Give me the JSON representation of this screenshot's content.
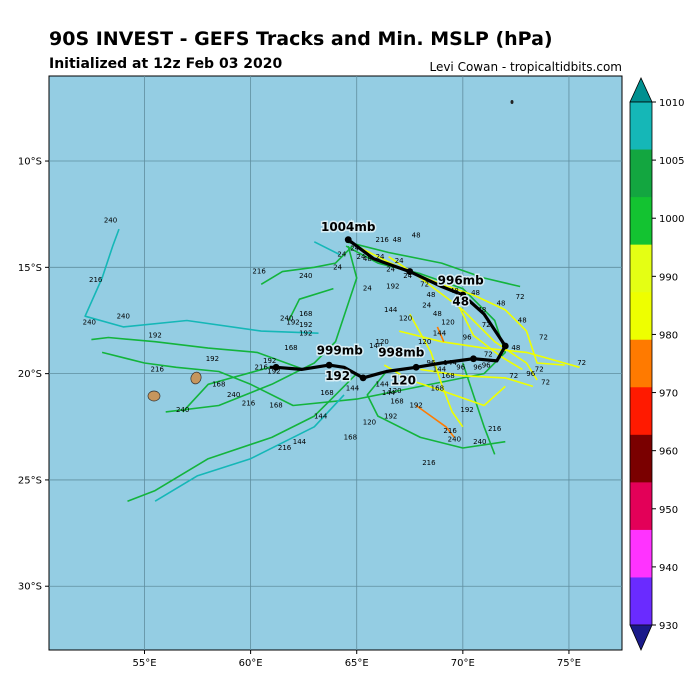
{
  "header": {
    "title": "90S INVEST - GEFS Tracks and Min. MSLP (hPa)",
    "subtitle": "Initialized at 12z Feb 03 2020",
    "credit": "Levi Cowan - tropicaltidbits.com"
  },
  "map": {
    "lon_range": [
      50.5,
      77.5
    ],
    "lat_range": [
      -33,
      -6
    ],
    "lat_ticks": [
      "10°S",
      "15°S",
      "20°S",
      "25°S",
      "30°S"
    ],
    "lon_ticks": [
      "55°E",
      "60°E",
      "65°E",
      "70°E",
      "75°E"
    ],
    "ocean_color": "#94cde3",
    "grid_color": "#5f8e9f"
  },
  "colorbar": {
    "ticks": [
      "1010",
      "1005",
      "1000",
      "990",
      "980",
      "970",
      "960",
      "950",
      "940",
      "930"
    ],
    "colors": [
      "#009090",
      "#15b7b7",
      "#13a640",
      "#13c331",
      "#e4ff14",
      "#eeff00",
      "#ff7a00",
      "#ff1a00",
      "#7a0000",
      "#e30058",
      "#ff33ff",
      "#6a2bff",
      "#1a1a8a"
    ]
  },
  "mean_labels": [
    {
      "text": "1004mb",
      "lon": 64.6,
      "lat": -13.3
    },
    {
      "text": "996mb",
      "lon": 69.9,
      "lat": -15.8
    },
    {
      "text": "48",
      "lon": 69.9,
      "lat": -16.8
    },
    {
      "text": "999mb",
      "lon": 64.2,
      "lat": -19.1
    },
    {
      "text": "192",
      "lon": 64.1,
      "lat": -20.3
    },
    {
      "text": "998mb",
      "lon": 67.1,
      "lat": -19.2
    },
    {
      "text": "120",
      "lon": 67.2,
      "lat": -20.5
    }
  ],
  "mean_track": [
    [
      64.6,
      -13.7
    ],
    [
      65.8,
      -14.6
    ],
    [
      67.5,
      -15.2
    ],
    [
      69,
      -15.9
    ],
    [
      70,
      -16.3
    ],
    [
      71,
      -17.2
    ],
    [
      72,
      -18.7
    ],
    [
      71.6,
      -19.4
    ],
    [
      70.5,
      -19.3
    ],
    [
      69,
      -19.5
    ],
    [
      67.8,
      -19.7
    ],
    [
      66.4,
      -19.9
    ],
    [
      65.3,
      -20.2
    ],
    [
      64.4,
      -19.7
    ],
    [
      63.7,
      -19.6
    ],
    [
      62.4,
      -19.8
    ],
    [
      61.2,
      -19.7
    ],
    [
      60.9,
      -19.7
    ]
  ],
  "ensemble_tracks": [
    {
      "color": "#13b43c",
      "points": [
        [
          64.5,
          -14
        ],
        [
          66,
          -14.8
        ],
        [
          68,
          -15.3
        ],
        [
          70,
          -16
        ],
        [
          71.5,
          -17.5
        ],
        [
          72,
          -19
        ],
        [
          71,
          -20
        ],
        [
          69,
          -20.4
        ],
        [
          67,
          -20.8
        ],
        [
          65,
          -21.2
        ],
        [
          62,
          -21.5
        ],
        [
          60,
          -20.5
        ],
        [
          58.5,
          -19.9
        ],
        [
          56.5,
          -19.7
        ],
        [
          55,
          -19.5
        ],
        [
          53,
          -19
        ]
      ]
    },
    {
      "color": "#13b43c",
      "points": [
        [
          64.5,
          -13.8
        ],
        [
          66.5,
          -14.3
        ],
        [
          69,
          -14.8
        ],
        [
          71,
          -15.5
        ],
        [
          72.7,
          -15.9
        ]
      ]
    },
    {
      "color": "#13b43c",
      "points": [
        [
          64.6,
          -14
        ],
        [
          65,
          -15.5
        ],
        [
          64.5,
          -17
        ],
        [
          64,
          -18.5
        ],
        [
          63,
          -19.5
        ],
        [
          61,
          -20.5
        ],
        [
          58.5,
          -21.5
        ],
        [
          56,
          -21.8
        ]
      ]
    },
    {
      "color": "#13b43c",
      "points": [
        [
          65,
          -20
        ],
        [
          64,
          -21
        ],
        [
          63,
          -22
        ],
        [
          61,
          -23
        ],
        [
          58,
          -24
        ],
        [
          55.5,
          -25.5
        ],
        [
          54.2,
          -26
        ]
      ]
    },
    {
      "color": "#13b43c",
      "points": [
        [
          64.8,
          -14
        ],
        [
          64,
          -14.8
        ],
        [
          63,
          -15
        ],
        [
          61.5,
          -15.2
        ],
        [
          60.5,
          -15.8
        ]
      ]
    },
    {
      "color": "#13b43c",
      "points": [
        [
          66.4,
          -19.9
        ],
        [
          65.5,
          -21
        ],
        [
          66,
          -22
        ],
        [
          68,
          -23
        ],
        [
          70,
          -23.5
        ],
        [
          72,
          -23.2
        ]
      ]
    },
    {
      "color": "#13b43c",
      "points": [
        [
          70,
          -19.5
        ],
        [
          70.5,
          -21
        ],
        [
          71,
          -22.5
        ],
        [
          71.5,
          -23.8
        ]
      ]
    },
    {
      "color": "#13b43c",
      "points": [
        [
          62.5,
          -19.8
        ],
        [
          60.3,
          -19
        ],
        [
          58,
          -18.8
        ],
        [
          55.5,
          -18.5
        ],
        [
          53.3,
          -18.3
        ],
        [
          52.5,
          -18.4
        ]
      ]
    },
    {
      "color": "#13b43c",
      "points": [
        [
          60.9,
          -19.7
        ],
        [
          58,
          -20.5
        ],
        [
          56.8,
          -21.8
        ]
      ]
    },
    {
      "color": "#13b43c",
      "points": [
        [
          63.9,
          -16
        ],
        [
          62.3,
          -16.5
        ],
        [
          61.8,
          -17.5
        ]
      ]
    },
    {
      "color": "#15b7b7",
      "points": [
        [
          63.2,
          -18.1
        ],
        [
          60.5,
          -18
        ],
        [
          57,
          -17.5
        ],
        [
          54,
          -17.8
        ],
        [
          52.2,
          -17.3
        ],
        [
          53,
          -15.5
        ],
        [
          53.5,
          -14
        ],
        [
          53.8,
          -13.2
        ]
      ]
    },
    {
      "color": "#15b7b7",
      "points": [
        [
          64.2,
          -14.4
        ],
        [
          63,
          -13.8
        ]
      ]
    },
    {
      "color": "#15b7b7",
      "points": [
        [
          64.4,
          -21
        ],
        [
          63,
          -22.5
        ],
        [
          60,
          -24
        ],
        [
          57.5,
          -24.8
        ],
        [
          55.5,
          -26
        ]
      ]
    },
    {
      "color": "#eeff00",
      "points": [
        [
          65,
          -14
        ],
        [
          67,
          -15
        ],
        [
          69,
          -15.8
        ],
        [
          70.5,
          -16.3
        ],
        [
          72,
          -17
        ],
        [
          73,
          -18
        ],
        [
          73.5,
          -19.5
        ],
        [
          74.8,
          -19.6
        ]
      ]
    },
    {
      "color": "#eeff00",
      "points": [
        [
          66.5,
          -14.5
        ],
        [
          68,
          -15.5
        ],
        [
          70,
          -17
        ],
        [
          71.5,
          -18.5
        ],
        [
          73,
          -19.5
        ],
        [
          73.5,
          -20.3
        ]
      ]
    },
    {
      "color": "#eeff00",
      "points": [
        [
          67,
          -18
        ],
        [
          69,
          -18.5
        ],
        [
          71,
          -18.8
        ],
        [
          73,
          -19
        ],
        [
          75.5,
          -19.7
        ]
      ]
    },
    {
      "color": "#eeff00",
      "points": [
        [
          67.5,
          -17.2
        ],
        [
          68.5,
          -19
        ],
        [
          69,
          -20.5
        ],
        [
          69.5,
          -21.8
        ],
        [
          70,
          -22.5
        ]
      ]
    },
    {
      "color": "#eeff00",
      "points": [
        [
          66.3,
          -19.6
        ],
        [
          67.5,
          -20.3
        ],
        [
          69,
          -20.8
        ],
        [
          71,
          -21.5
        ],
        [
          72,
          -20.6
        ]
      ]
    },
    {
      "color": "#eeff00",
      "points": [
        [
          69.8,
          -16.8
        ],
        [
          70.5,
          -18.2
        ],
        [
          71.8,
          -19.2
        ],
        [
          72.8,
          -19.8
        ]
      ]
    },
    {
      "color": "#eeff00",
      "points": [
        [
          68,
          -19.8
        ],
        [
          70,
          -20.1
        ],
        [
          72,
          -20.2
        ],
        [
          73.3,
          -20.6
        ]
      ]
    },
    {
      "color": "#ff7a00",
      "points": [
        [
          67.8,
          -21.5
        ],
        [
          68.5,
          -22
        ],
        [
          69.2,
          -22.5
        ],
        [
          69.6,
          -23
        ]
      ]
    },
    {
      "color": "#ff7a00",
      "points": [
        [
          68.8,
          -17.8
        ],
        [
          69.1,
          -18.5
        ]
      ]
    }
  ],
  "hour_labels": [
    {
      "text": "240",
      "lon": 53.4,
      "lat": -12.9
    },
    {
      "text": "216",
      "lon": 52.7,
      "lat": -15.7
    },
    {
      "text": "240",
      "lon": 52.4,
      "lat": -17.7
    },
    {
      "text": "240",
      "lon": 54,
      "lat": -17.4
    },
    {
      "text": "192",
      "lon": 55.5,
      "lat": -18.3
    },
    {
      "text": "216",
      "lon": 55.6,
      "lat": -19.9
    },
    {
      "text": "240",
      "lon": 56.8,
      "lat": -21.8
    },
    {
      "text": "192",
      "lon": 58.2,
      "lat": -19.4
    },
    {
      "text": "168",
      "lon": 58.5,
      "lat": -20.6
    },
    {
      "text": "240",
      "lon": 59.2,
      "lat": -21.1
    },
    {
      "text": "216",
      "lon": 59.9,
      "lat": -21.5
    },
    {
      "text": "168",
      "lon": 61.2,
      "lat": -21.6
    },
    {
      "text": "216",
      "lon": 60.4,
      "lat": -15.3
    },
    {
      "text": "240",
      "lon": 61.7,
      "lat": -17.5
    },
    {
      "text": "240",
      "lon": 62.6,
      "lat": -15.5
    },
    {
      "text": "168",
      "lon": 62.6,
      "lat": -17.3
    },
    {
      "text": "192",
      "lon": 62,
      "lat": -17.7
    },
    {
      "text": "192",
      "lon": 62.6,
      "lat": -17.8
    },
    {
      "text": "192",
      "lon": 62.6,
      "lat": -18.2
    },
    {
      "text": "168",
      "lon": 61.9,
      "lat": -18.9
    },
    {
      "text": "192",
      "lon": 60.9,
      "lat": -19.5
    },
    {
      "text": "216",
      "lon": 60.5,
      "lat": -19.8
    },
    {
      "text": "192",
      "lon": 61.1,
      "lat": -20
    },
    {
      "text": "168",
      "lon": 63.6,
      "lat": -21
    },
    {
      "text": "144",
      "lon": 64.8,
      "lat": -20.8
    },
    {
      "text": "144",
      "lon": 63.3,
      "lat": -22.1
    },
    {
      "text": "144",
      "lon": 62.3,
      "lat": -23.3
    },
    {
      "text": "216",
      "lon": 61.6,
      "lat": -23.6
    },
    {
      "text": "168",
      "lon": 64.7,
      "lat": -23.1
    },
    {
      "text": "120",
      "lon": 65.6,
      "lat": -22.4
    },
    {
      "text": "192",
      "lon": 66.6,
      "lat": -22.1
    },
    {
      "text": "168",
      "lon": 66.9,
      "lat": -21.4
    },
    {
      "text": "192",
      "lon": 67.8,
      "lat": -21.6
    },
    {
      "text": "144",
      "lon": 66.5,
      "lat": -21
    },
    {
      "text": "120",
      "lon": 66.8,
      "lat": -20.9
    },
    {
      "text": "144",
      "lon": 66.2,
      "lat": -20.6
    },
    {
      "text": "216",
      "lon": 68.4,
      "lat": -24.3
    },
    {
      "text": "216",
      "lon": 69.4,
      "lat": -22.8
    },
    {
      "text": "240",
      "lon": 69.6,
      "lat": -23.2
    },
    {
      "text": "192",
      "lon": 70.2,
      "lat": -21.8
    },
    {
      "text": "216",
      "lon": 71.5,
      "lat": -22.7
    },
    {
      "text": "240",
      "lon": 70.8,
      "lat": -23.3
    },
    {
      "text": "168",
      "lon": 68.8,
      "lat": -20.8
    },
    {
      "text": "168",
      "lon": 69.3,
      "lat": -20.2
    },
    {
      "text": "144",
      "lon": 69.4,
      "lat": -19.6
    },
    {
      "text": "96",
      "lon": 69.9,
      "lat": -19.8
    },
    {
      "text": "96",
      "lon": 70.7,
      "lat": -19.8
    },
    {
      "text": "96",
      "lon": 71.1,
      "lat": -19.7
    },
    {
      "text": "72",
      "lon": 71.2,
      "lat": -19.2
    },
    {
      "text": "72",
      "lon": 72.4,
      "lat": -20.2
    },
    {
      "text": "96",
      "lon": 73.2,
      "lat": -20.1
    },
    {
      "text": "72",
      "lon": 73.6,
      "lat": -19.9
    },
    {
      "text": "72",
      "lon": 73.9,
      "lat": -20.5
    },
    {
      "text": "72",
      "lon": 75.6,
      "lat": -19.6
    },
    {
      "text": "72",
      "lon": 73.8,
      "lat": -18.4
    },
    {
      "text": "48",
      "lon": 72.8,
      "lat": -17.6
    },
    {
      "text": "48",
      "lon": 72.5,
      "lat": -18.9
    },
    {
      "text": "72",
      "lon": 72.7,
      "lat": -16.5
    },
    {
      "text": "48",
      "lon": 71.8,
      "lat": -16.8
    },
    {
      "text": "48",
      "lon": 70.6,
      "lat": -16.3
    },
    {
      "text": "48",
      "lon": 69.6,
      "lat": -16.2
    },
    {
      "text": "48",
      "lon": 70.9,
      "lat": -17.1
    },
    {
      "text": "48",
      "lon": 68.8,
      "lat": -17.3
    },
    {
      "text": "48",
      "lon": 68.5,
      "lat": -16.4
    },
    {
      "text": "72",
      "lon": 68.2,
      "lat": -15.9
    },
    {
      "text": "24",
      "lon": 68.3,
      "lat": -16.9
    },
    {
      "text": "120",
      "lon": 69.3,
      "lat": -17.7
    },
    {
      "text": "96",
      "lon": 70.2,
      "lat": -18.4
    },
    {
      "text": "72",
      "lon": 71.1,
      "lat": -17.8
    },
    {
      "text": "144",
      "lon": 68.9,
      "lat": -18.2
    },
    {
      "text": "120",
      "lon": 68.2,
      "lat": -18.6
    },
    {
      "text": "144",
      "lon": 66.6,
      "lat": -17.1
    },
    {
      "text": "120",
      "lon": 67.3,
      "lat": -17.5
    },
    {
      "text": "216",
      "lon": 66.2,
      "lat": -13.8
    },
    {
      "text": "48",
      "lon": 67.8,
      "lat": -13.6
    },
    {
      "text": "48",
      "lon": 66.9,
      "lat": -13.8
    },
    {
      "text": "24",
      "lon": 66.1,
      "lat": -14.6
    },
    {
      "text": "24",
      "lon": 67,
      "lat": -14.8
    },
    {
      "text": "24",
      "lon": 66.6,
      "lat": -15.2
    },
    {
      "text": "24",
      "lon": 67.4,
      "lat": -15.5
    },
    {
      "text": "24",
      "lon": 65.5,
      "lat": -16.1
    },
    {
      "text": "192",
      "lon": 66.7,
      "lat": -16
    },
    {
      "text": "24",
      "lon": 64.1,
      "lat": -15.1
    },
    {
      "text": "24",
      "lon": 64.3,
      "lat": -14.5
    },
    {
      "text": "24",
      "lon": 64.9,
      "lat": -14.2
    },
    {
      "text": "48",
      "lon": 65.5,
      "lat": -14.7
    },
    {
      "text": "24",
      "lon": 65.2,
      "lat": -14.6
    },
    {
      "text": "140",
      "lon": 65.9,
      "lat": -18.8
    },
    {
      "text": "120",
      "lon": 66.2,
      "lat": -18.6
    },
    {
      "text": "96",
      "lon": 68.5,
      "lat": -19.6
    },
    {
      "text": "144",
      "lon": 68.9,
      "lat": -19.9
    }
  ]
}
